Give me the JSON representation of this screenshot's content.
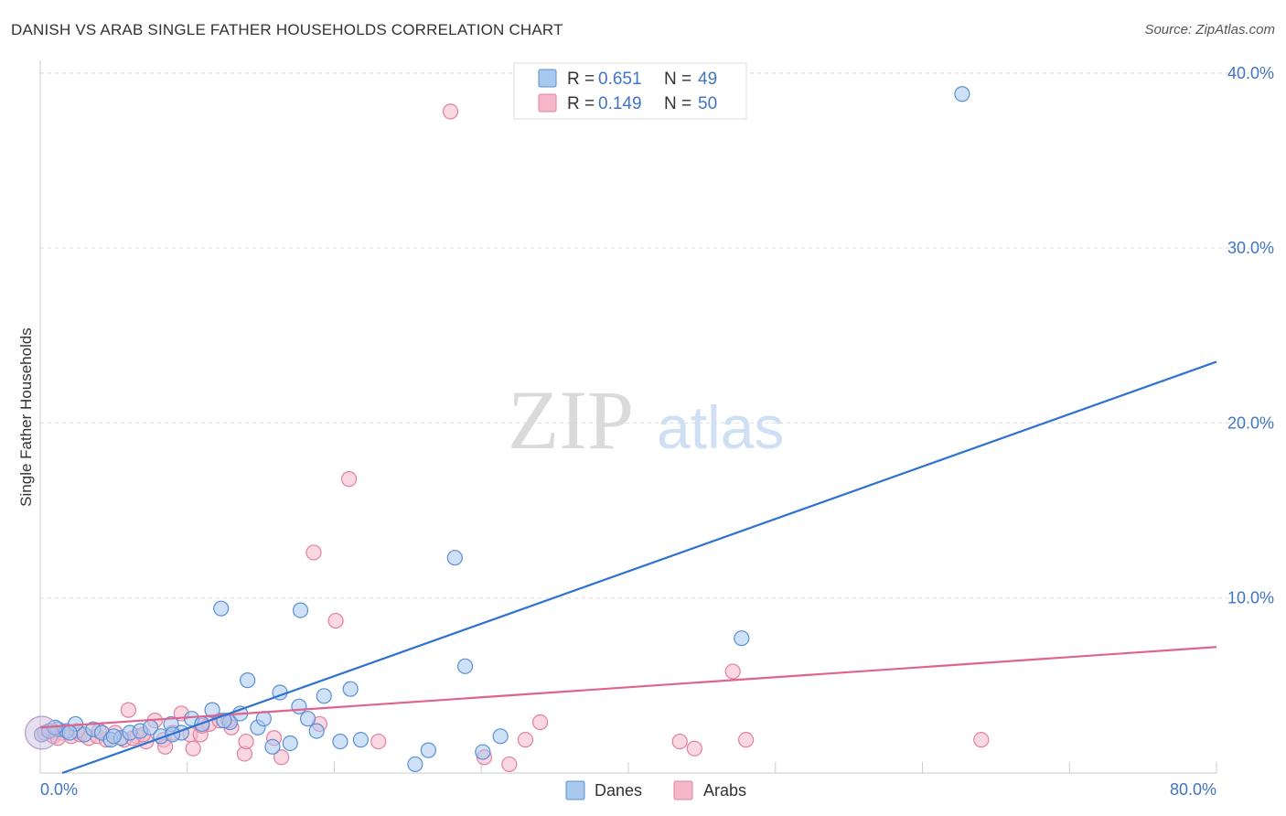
{
  "title": "DANISH VS ARAB SINGLE FATHER HOUSEHOLDS CORRELATION CHART",
  "source": "Source: ZipAtlas.com",
  "watermark": {
    "zip": "ZIP",
    "atlas": "atlas"
  },
  "colors": {
    "danes_fill": "#a8c8ee",
    "danes_stroke": "#5a8fd6",
    "danes_line": "#2f73cf",
    "arabs_fill": "#f5b8cb",
    "arabs_stroke": "#e27fa0",
    "arabs_line": "#e0638f",
    "axis_label": "#3f74c6",
    "grid": "#dddddd"
  },
  "legend": {
    "items": [
      {
        "r_label": "R =",
        "r_value": "0.651",
        "n_label": "N =",
        "n_value": "49"
      },
      {
        "r_label": "R =",
        "r_value": "0.149",
        "n_label": "N =",
        "n_value": "50"
      }
    ]
  },
  "chart_data": {
    "type": "scatter",
    "title": "DANISH VS ARAB SINGLE FATHER HOUSEHOLDS CORRELATION CHART",
    "xlabel": "",
    "ylabel": "Single Father Households",
    "xlim": [
      0,
      80
    ],
    "ylim": [
      0,
      41
    ],
    "x_tick_labels": [
      "0.0%",
      "80.0%"
    ],
    "y_ticks": [
      10,
      20,
      30,
      40
    ],
    "y_tick_labels": [
      "10.0%",
      "20.0%",
      "30.0%",
      "40.0%"
    ],
    "grid": true,
    "legend_position": "bottom-center",
    "series": [
      {
        "name": "Danes",
        "trend": {
          "x": [
            1.5,
            80
          ],
          "y": [
            0,
            23.5
          ]
        },
        "points": [
          {
            "x": 0.1,
            "y": 2.2
          },
          {
            "x": 0.6,
            "y": 2.4
          },
          {
            "x": 1.2,
            "y": 2.5
          },
          {
            "x": 1.8,
            "y": 2.4
          },
          {
            "x": 2.4,
            "y": 2.8
          },
          {
            "x": 3.0,
            "y": 2.2
          },
          {
            "x": 3.6,
            "y": 2.5
          },
          {
            "x": 4.2,
            "y": 2.3
          },
          {
            "x": 4.8,
            "y": 1.9
          },
          {
            "x": 5.5,
            "y": 2.0
          },
          {
            "x": 6.1,
            "y": 2.3
          },
          {
            "x": 6.8,
            "y": 2.4
          },
          {
            "x": 7.5,
            "y": 2.6
          },
          {
            "x": 8.2,
            "y": 2.1
          },
          {
            "x": 8.9,
            "y": 2.8
          },
          {
            "x": 9.6,
            "y": 2.3
          },
          {
            "x": 10.3,
            "y": 3.1
          },
          {
            "x": 11.0,
            "y": 2.8
          },
          {
            "x": 11.7,
            "y": 3.6
          },
          {
            "x": 12.3,
            "y": 9.4
          },
          {
            "x": 12.9,
            "y": 2.9
          },
          {
            "x": 13.6,
            "y": 3.4
          },
          {
            "x": 14.1,
            "y": 5.3
          },
          {
            "x": 14.8,
            "y": 2.6
          },
          {
            "x": 15.2,
            "y": 3.1
          },
          {
            "x": 15.8,
            "y": 1.5
          },
          {
            "x": 16.3,
            "y": 4.6
          },
          {
            "x": 17.0,
            "y": 1.7
          },
          {
            "x": 17.6,
            "y": 3.8
          },
          {
            "x": 17.7,
            "y": 9.3
          },
          {
            "x": 18.2,
            "y": 3.1
          },
          {
            "x": 18.8,
            "y": 2.4
          },
          {
            "x": 19.3,
            "y": 4.4
          },
          {
            "x": 20.4,
            "y": 1.8
          },
          {
            "x": 21.1,
            "y": 4.8
          },
          {
            "x": 21.8,
            "y": 1.9
          },
          {
            "x": 25.5,
            "y": 0.5
          },
          {
            "x": 26.4,
            "y": 1.3
          },
          {
            "x": 28.2,
            "y": 12.3
          },
          {
            "x": 28.9,
            "y": 6.1
          },
          {
            "x": 30.1,
            "y": 1.2
          },
          {
            "x": 31.3,
            "y": 2.1
          },
          {
            "x": 12.5,
            "y": 3.0
          },
          {
            "x": 9.0,
            "y": 2.2
          },
          {
            "x": 5.0,
            "y": 2.1
          },
          {
            "x": 2.0,
            "y": 2.3
          },
          {
            "x": 1.0,
            "y": 2.6
          },
          {
            "x": 47.7,
            "y": 7.7
          },
          {
            "x": 62.7,
            "y": 38.8
          }
        ]
      },
      {
        "name": "Arabs",
        "trend": {
          "x": [
            0,
            80
          ],
          "y": [
            2.6,
            7.2
          ]
        },
        "points": [
          {
            "x": 0.3,
            "y": 2.3
          },
          {
            "x": 0.9,
            "y": 2.1
          },
          {
            "x": 1.5,
            "y": 2.3
          },
          {
            "x": 2.1,
            "y": 2.1
          },
          {
            "x": 2.7,
            "y": 2.2
          },
          {
            "x": 3.3,
            "y": 2.0
          },
          {
            "x": 3.9,
            "y": 2.1
          },
          {
            "x": 4.5,
            "y": 1.9
          },
          {
            "x": 5.1,
            "y": 2.3
          },
          {
            "x": 5.7,
            "y": 1.9
          },
          {
            "x": 6.0,
            "y": 3.6
          },
          {
            "x": 6.6,
            "y": 2.1
          },
          {
            "x": 7.2,
            "y": 1.8
          },
          {
            "x": 7.8,
            "y": 3.0
          },
          {
            "x": 8.4,
            "y": 1.9
          },
          {
            "x": 8.5,
            "y": 1.5
          },
          {
            "x": 9.0,
            "y": 2.3
          },
          {
            "x": 9.6,
            "y": 3.4
          },
          {
            "x": 10.2,
            "y": 2.2
          },
          {
            "x": 10.4,
            "y": 1.4
          },
          {
            "x": 10.9,
            "y": 2.2
          },
          {
            "x": 11.5,
            "y": 2.8
          },
          {
            "x": 12.2,
            "y": 3.0
          },
          {
            "x": 12.8,
            "y": 3.0
          },
          {
            "x": 13.9,
            "y": 1.1
          },
          {
            "x": 14.0,
            "y": 1.8
          },
          {
            "x": 15.9,
            "y": 2.0
          },
          {
            "x": 16.4,
            "y": 0.9
          },
          {
            "x": 18.6,
            "y": 12.6
          },
          {
            "x": 19.0,
            "y": 2.8
          },
          {
            "x": 20.1,
            "y": 8.7
          },
          {
            "x": 21.0,
            "y": 16.8
          },
          {
            "x": 23.0,
            "y": 1.8
          },
          {
            "x": 27.9,
            "y": 37.8
          },
          {
            "x": 30.2,
            "y": 0.9
          },
          {
            "x": 31.9,
            "y": 0.5
          },
          {
            "x": 33.0,
            "y": 1.9
          },
          {
            "x": 34.0,
            "y": 2.9
          },
          {
            "x": 43.5,
            "y": 1.8
          },
          {
            "x": 44.5,
            "y": 1.4
          },
          {
            "x": 47.1,
            "y": 5.8
          },
          {
            "x": 48.0,
            "y": 1.9
          },
          {
            "x": 64.0,
            "y": 1.9
          },
          {
            "x": 4.0,
            "y": 2.4
          },
          {
            "x": 6.3,
            "y": 2.0
          },
          {
            "x": 7.0,
            "y": 2.2
          },
          {
            "x": 11.0,
            "y": 2.7
          },
          {
            "x": 13.0,
            "y": 2.6
          },
          {
            "x": 2.5,
            "y": 2.4
          },
          {
            "x": 1.2,
            "y": 2.0
          }
        ]
      }
    ]
  }
}
